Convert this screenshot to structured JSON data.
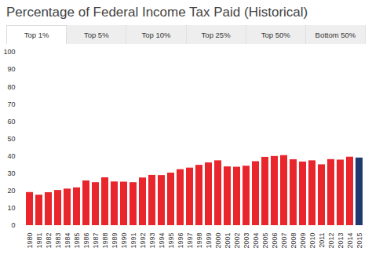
{
  "chart_data": {
    "type": "bar",
    "title": "Percentage of Federal Income Tax Paid (Historical)",
    "tabs": [
      {
        "label": "Top 1%",
        "selected": true
      },
      {
        "label": "Top 5%",
        "selected": false
      },
      {
        "label": "Top 10%",
        "selected": false
      },
      {
        "label": "Top 25%",
        "selected": false
      },
      {
        "label": "Top 50%",
        "selected": false
      },
      {
        "label": "Bottom 50%",
        "selected": false
      }
    ],
    "categories": [
      "1980",
      "1981",
      "1982",
      "1983",
      "1984",
      "1985",
      "1986",
      "1987",
      "1988",
      "1989",
      "1990",
      "1991",
      "1992",
      "1993",
      "1994",
      "1995",
      "1996",
      "1997",
      "1998",
      "1999",
      "2000",
      "2001",
      "2002",
      "2003",
      "2004",
      "2005",
      "2006",
      "2007",
      "2008",
      "2009",
      "2010",
      "2011",
      "2012",
      "2013",
      "2014",
      "2015"
    ],
    "values": [
      19.1,
      17.6,
      19.0,
      20.3,
      21.1,
      21.8,
      25.8,
      24.8,
      27.6,
      25.2,
      25.1,
      24.8,
      27.5,
      29.0,
      28.9,
      30.3,
      32.3,
      33.2,
      34.8,
      36.2,
      37.4,
      33.9,
      33.7,
      34.3,
      36.9,
      39.4,
      39.9,
      40.4,
      38.0,
      36.7,
      37.4,
      35.1,
      38.1,
      37.8,
      39.5,
      39.0
    ],
    "colors": [
      "#e8262b",
      "#e8262b",
      "#e8262b",
      "#e8262b",
      "#e8262b",
      "#e8262b",
      "#e8262b",
      "#e8262b",
      "#e8262b",
      "#e8262b",
      "#e8262b",
      "#e8262b",
      "#e8262b",
      "#e8262b",
      "#e8262b",
      "#e8262b",
      "#e8262b",
      "#e8262b",
      "#e8262b",
      "#e8262b",
      "#e8262b",
      "#e8262b",
      "#e8262b",
      "#e8262b",
      "#e8262b",
      "#e8262b",
      "#e8262b",
      "#e8262b",
      "#e8262b",
      "#e8262b",
      "#e8262b",
      "#e8262b",
      "#e8262b",
      "#e8262b",
      "#e8262b",
      "#1f3a6e"
    ],
    "ylim": [
      0,
      100
    ],
    "yticks": [
      0,
      10,
      20,
      30,
      40,
      50,
      60,
      70,
      80,
      90,
      100
    ],
    "grid": false
  }
}
